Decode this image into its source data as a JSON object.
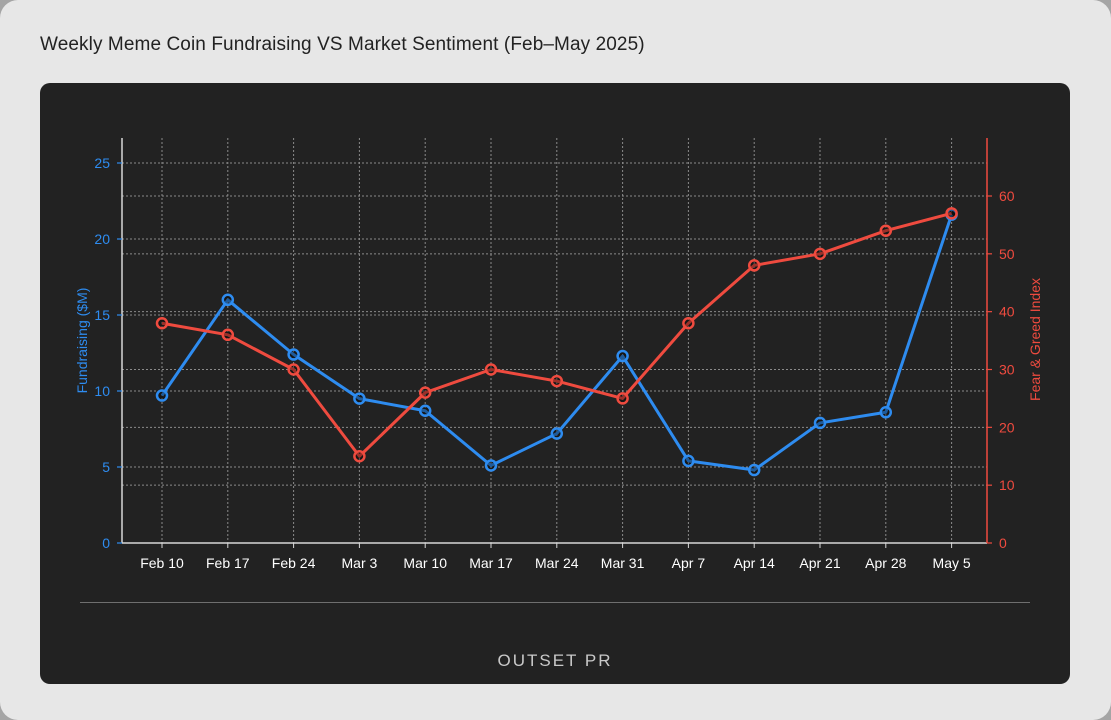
{
  "title": "Weekly Meme Coin Fundraising VS Market Sentiment (Feb–May 2025)",
  "brand": "OUTSET PR",
  "colors": {
    "fundraising": "#2e8cf0",
    "sentiment": "#ef4b3f",
    "background": "#222222",
    "axis": "#d8d8d8",
    "grid": "#8a8a8a",
    "tick_label": "#ffffff"
  },
  "chart_data": {
    "type": "line",
    "title": "Weekly Meme Coin Fundraising VS Market Sentiment (Feb–May 2025)",
    "categories": [
      "Feb 10",
      "Feb 17",
      "Feb 24",
      "Mar 3",
      "Mar 10",
      "Mar 17",
      "Mar 24",
      "Mar 31",
      "Apr 7",
      "Apr 14",
      "Apr 21",
      "Apr 28",
      "May 5"
    ],
    "series": [
      {
        "name": "Fundraising ($M)",
        "axis": "left",
        "color": "#2e8cf0",
        "values": [
          9.7,
          16.0,
          12.4,
          9.5,
          8.7,
          5.1,
          7.2,
          12.3,
          5.4,
          4.8,
          7.9,
          8.6,
          21.6
        ]
      },
      {
        "name": "Fear & Greed Index",
        "axis": "right",
        "color": "#ef4b3f",
        "values": [
          38,
          36,
          30,
          15,
          26,
          30,
          28,
          25,
          38,
          48,
          50,
          54,
          57
        ]
      }
    ],
    "ylabel": "Fundraising ($M)",
    "ylabel_right": "Fear & Greed Index",
    "ylim": [
      0,
      25
    ],
    "ylim_right": [
      0,
      60
    ],
    "yticks": [
      0,
      5,
      10,
      15,
      20,
      25
    ],
    "yticks_right": [
      0,
      10,
      20,
      30,
      40,
      50,
      60
    ],
    "grid": true
  }
}
